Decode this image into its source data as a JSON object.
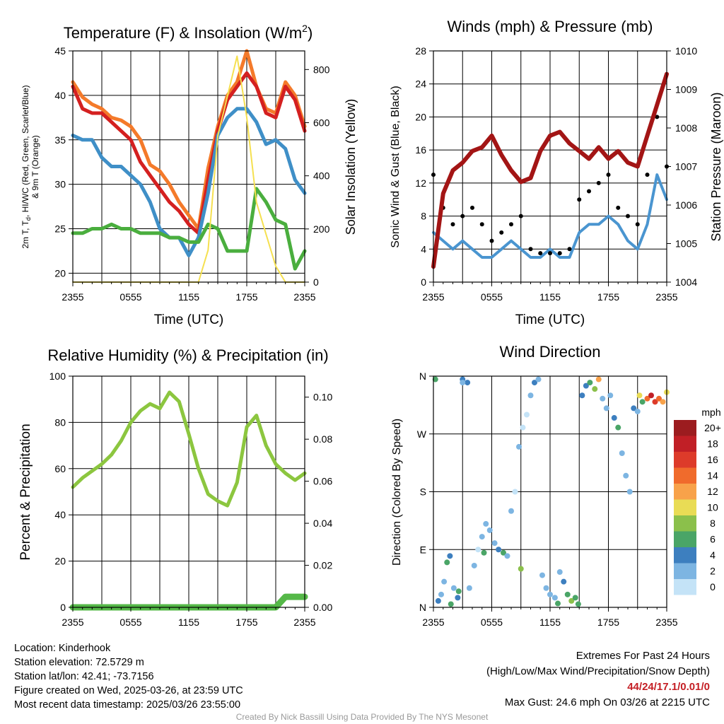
{
  "colors": {
    "temperature": "#d42020",
    "dewpoint": "#4aae3e",
    "heat_index_wind_chill": "#3f8fc7",
    "temp_9m": "#f47a2a",
    "solar": "#f5e050",
    "wind_speed": "#4a95d0",
    "wind_gust": "#000000",
    "pressure": "#a31515",
    "rh": "#8cc63f",
    "precip": "#55b848",
    "extremes": "#c41e24"
  },
  "time_ticks": [
    "2355",
    "0555",
    "1155",
    "1755",
    "2355"
  ],
  "chart_data": [
    {
      "type": "line",
      "title": "Temperature (F) & Insolation (W/m²)",
      "xlabel": "Time (UTC)",
      "ylabel_left": "2m T, Td, HI/WC (Red, Green, Scarlet/Blue) & 9m T (Orange)",
      "ylabel_right": "Solar Insolation (Yellow)",
      "ylim_left": [
        19,
        45
      ],
      "ylim_right": [
        0,
        870
      ],
      "yticks_left": [
        20,
        25,
        30,
        35,
        40,
        45
      ],
      "yticks_right": [
        0,
        200,
        400,
        600,
        800
      ],
      "x_hours": [
        0,
        1,
        2,
        3,
        4,
        5,
        6,
        7,
        8,
        9,
        10,
        11,
        12,
        13,
        14,
        15,
        16,
        17,
        18,
        19,
        20,
        21,
        22,
        23,
        24
      ],
      "series": [
        {
          "key": "temp_9m",
          "values": [
            41.5,
            39.8,
            39,
            38.5,
            37.5,
            37.2,
            36.5,
            35,
            32.2,
            31.5,
            30,
            28,
            26.5,
            25,
            31.8,
            36.5,
            40,
            41.5,
            45,
            41,
            38.5,
            38,
            41.5,
            40,
            36.5
          ]
        },
        {
          "key": "temperature",
          "values": [
            41,
            38.5,
            38,
            38,
            37,
            36,
            35,
            32.5,
            31,
            29.5,
            28,
            27,
            25.5,
            24.5,
            30.5,
            36,
            39.5,
            41,
            42.5,
            41,
            38,
            37.5,
            41,
            39.5,
            36
          ]
        },
        {
          "key": "heat_index_wind_chill",
          "values": [
            35.5,
            35,
            35,
            33,
            32,
            32,
            31,
            30,
            28,
            25,
            24,
            24,
            22,
            24,
            29,
            35.5,
            37.5,
            38.5,
            38.5,
            37,
            34.5,
            35,
            34,
            30.5,
            29
          ]
        },
        {
          "key": "dewpoint",
          "values": [
            24.5,
            24.5,
            25,
            25,
            25.5,
            25,
            25,
            24.5,
            24.5,
            24.5,
            24,
            24,
            23.5,
            23.5,
            25.5,
            25,
            22.5,
            22.5,
            22.5,
            29.5,
            28,
            26,
            25.5,
            20.5,
            22.5
          ]
        },
        {
          "key": "solar",
          "axis": "right",
          "values": [
            0,
            0,
            0,
            0,
            0,
            0,
            0,
            0,
            0,
            0,
            0,
            0,
            0,
            0,
            120,
            550,
            700,
            850,
            620,
            300,
            180,
            60,
            0,
            0,
            0
          ]
        }
      ]
    },
    {
      "type": "line",
      "title": "Winds (mph) & Pressure (mb)",
      "xlabel": "Time (UTC)",
      "ylabel_left": "Sonic Wind & Gust (Blue, Black)",
      "ylabel_right": "Station Pressure (Maroon)",
      "ylim_left": [
        0,
        28
      ],
      "ylim_right": [
        1004,
        1010
      ],
      "yticks_left": [
        0,
        4,
        8,
        12,
        16,
        20,
        24,
        28
      ],
      "yticks_right": [
        1004,
        1005,
        1006,
        1007,
        1008,
        1009,
        1010
      ],
      "x_hours": [
        0,
        1,
        2,
        3,
        4,
        5,
        6,
        7,
        8,
        9,
        10,
        11,
        12,
        13,
        14,
        15,
        16,
        17,
        18,
        19,
        20,
        21,
        22,
        23,
        24
      ],
      "series": [
        {
          "key": "wind_speed",
          "name": "Sonic Wind",
          "values": [
            6,
            5,
            4,
            5,
            4,
            3,
            3,
            4,
            5,
            4,
            3,
            3,
            4,
            3,
            3,
            6,
            7,
            7,
            8,
            7,
            5,
            4,
            7,
            13,
            10
          ]
        },
        {
          "key": "wind_gust",
          "name": "Gust",
          "values": [
            13,
            9,
            7,
            8,
            9,
            7,
            5,
            6,
            7,
            8,
            4,
            3.5,
            3.5,
            3.5,
            4,
            10,
            11,
            12,
            13,
            9,
            8,
            7,
            13,
            20,
            14
          ]
        },
        {
          "key": "pressure",
          "name": "Pressure",
          "axis": "right",
          "values": [
            1004.4,
            1006.3,
            1006.9,
            1007.1,
            1007.4,
            1007.5,
            1007.8,
            1007.3,
            1006.9,
            1006.6,
            1006.7,
            1007.4,
            1007.8,
            1007.9,
            1007.6,
            1007.4,
            1007.2,
            1007.5,
            1007.2,
            1007.4,
            1007.1,
            1007.0,
            1007.8,
            1008.6,
            1009.4
          ]
        }
      ]
    },
    {
      "type": "line",
      "title": "Relative Humidity (%) & Precipitation (in)",
      "ylabel_left": "Percent & Precipitation",
      "ylim_left": [
        0,
        100
      ],
      "ylim_right": [
        0,
        0.11
      ],
      "yticks_left": [
        0,
        20,
        40,
        60,
        80,
        100
      ],
      "yticks_right": [
        "0.00",
        "0.02",
        "0.04",
        "0.06",
        "0.08",
        "0.10"
      ],
      "x_hours": [
        0,
        1,
        2,
        3,
        4,
        5,
        6,
        7,
        8,
        9,
        10,
        11,
        12,
        13,
        14,
        15,
        16,
        17,
        18,
        19,
        20,
        21,
        22,
        23,
        24
      ],
      "series": [
        {
          "key": "rh",
          "name": "Relative Humidity",
          "values": [
            52,
            56,
            59,
            62,
            66,
            72,
            80,
            85,
            88,
            86,
            93,
            89,
            75,
            60,
            49,
            46,
            44,
            54,
            78,
            83,
            70,
            62,
            58,
            55,
            58
          ]
        },
        {
          "key": "precip",
          "name": "Precipitation",
          "axis": "right",
          "values": [
            0,
            0,
            0,
            0,
            0,
            0,
            0,
            0,
            0,
            0,
            0,
            0,
            0,
            0,
            0,
            0,
            0,
            0,
            0,
            0,
            0,
            0,
            0.005,
            0.005,
            0.005
          ]
        }
      ]
    },
    {
      "type": "scatter",
      "title": "Wind Direction",
      "ylabel": "Direction (Colored By Speed)",
      "yticks": [
        "N",
        "E",
        "S",
        "W",
        "N"
      ],
      "ylim_degrees": [
        0,
        360
      ],
      "colorbar": {
        "unit": "mph",
        "labels": [
          "20+",
          "18",
          "16",
          "14",
          "12",
          "10",
          "8",
          "6",
          "4",
          "2",
          "0"
        ],
        "colors": [
          "#9c1c1f",
          "#c11f26",
          "#dd3b2a",
          "#f06b2c",
          "#f8a24a",
          "#e9dc55",
          "#8bc04b",
          "#4aa567",
          "#3d7fbf",
          "#7db5e2",
          "#c4e3f7"
        ]
      },
      "points": [
        [
          0.2,
          355,
          6
        ],
        [
          0.5,
          10,
          5
        ],
        [
          0.8,
          20,
          3
        ],
        [
          1.1,
          40,
          2
        ],
        [
          1.4,
          70,
          6
        ],
        [
          1.7,
          80,
          4
        ],
        [
          2.1,
          30,
          2
        ],
        [
          2.5,
          15,
          5
        ],
        [
          3.0,
          355,
          4
        ],
        [
          3.5,
          350,
          5
        ],
        [
          3.0,
          350,
          3
        ],
        [
          3.7,
          30,
          3
        ],
        [
          4.2,
          65,
          2
        ],
        [
          4.6,
          90,
          1
        ],
        [
          5.0,
          110,
          2
        ],
        [
          5.4,
          130,
          3
        ],
        [
          5.8,
          120,
          2
        ],
        [
          6.3,
          100,
          3
        ],
        [
          6.7,
          90,
          5
        ],
        [
          7.2,
          85,
          6
        ],
        [
          7.6,
          80,
          2
        ],
        [
          8.0,
          150,
          2
        ],
        [
          8.4,
          180,
          1
        ],
        [
          8.8,
          250,
          2
        ],
        [
          9.2,
          280,
          1
        ],
        [
          9.6,
          300,
          1
        ],
        [
          10.0,
          330,
          3
        ],
        [
          10.4,
          350,
          4
        ],
        [
          10.8,
          355,
          2
        ],
        [
          11.2,
          50,
          3
        ],
        [
          11.6,
          30,
          2
        ],
        [
          12.0,
          20,
          2
        ],
        [
          12.5,
          15,
          3
        ],
        [
          13.0,
          55,
          3
        ],
        [
          13.4,
          40,
          4
        ],
        [
          13.8,
          20,
          6
        ],
        [
          14.2,
          10,
          9
        ],
        [
          14.6,
          15,
          7
        ],
        [
          14.9,
          5,
          6
        ],
        [
          15.3,
          330,
          5
        ],
        [
          15.7,
          345,
          4
        ],
        [
          16.1,
          350,
          6
        ],
        [
          16.6,
          340,
          8
        ],
        [
          17.0,
          355,
          12
        ],
        [
          17.4,
          325,
          3
        ],
        [
          17.8,
          310,
          3
        ],
        [
          18.2,
          330,
          3
        ],
        [
          18.6,
          295,
          5
        ],
        [
          19.0,
          280,
          6
        ],
        [
          19.4,
          240,
          3
        ],
        [
          19.8,
          205,
          2
        ],
        [
          20.2,
          180,
          2
        ],
        [
          20.6,
          310,
          4
        ],
        [
          21.0,
          305,
          3
        ],
        [
          21.5,
          320,
          7
        ],
        [
          22.0,
          325,
          14
        ],
        [
          22.4,
          330,
          18
        ],
        [
          22.8,
          320,
          16
        ],
        [
          23.2,
          325,
          15
        ],
        [
          23.6,
          320,
          12
        ],
        [
          24.0,
          335,
          10
        ],
        [
          1.8,
          5,
          7
        ],
        [
          2.6,
          25,
          6
        ],
        [
          5.2,
          85,
          6
        ],
        [
          9.0,
          60,
          8
        ],
        [
          12.8,
          6,
          7
        ],
        [
          21.2,
          330,
          10
        ]
      ]
    }
  ],
  "info": {
    "location": "Location: Kinderhook",
    "elevation": "Station elevation: 72.5729 m",
    "latlon": "Station lat/lon: 42.41; -73.7156",
    "created": "Figure created on Wed, 2025-03-26, at 23:59 UTC",
    "recent": "Most recent data timestamp: 2025/03/26 23:55:00"
  },
  "extremes": {
    "title": "Extremes For Past 24 Hours",
    "subtitle": "(High/Low/Max Wind/Precipitation/Snow Depth)",
    "values": "44/24/17.1/0.01/0",
    "max_gust": "Max Gust: 24.6 mph On 03/26 at 2215 UTC"
  },
  "credit": "Created By Nick Bassill Using Data Provided By The NYS Mesonet"
}
